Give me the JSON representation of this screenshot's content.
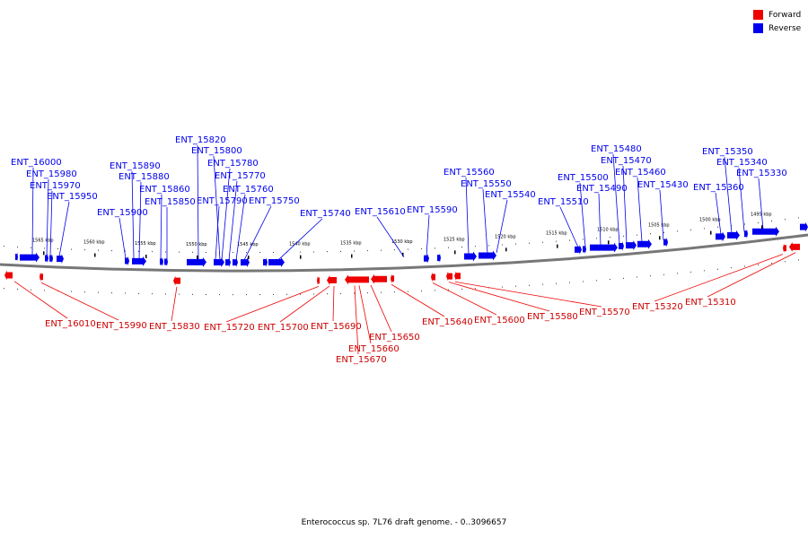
{
  "legend": {
    "forward_label": "Forward",
    "reverse_label": "Reverse",
    "forward_color": "#ee0000",
    "reverse_color": "#0000ee"
  },
  "caption": "Enterococcus sp. 7L76 draft genome. - 0..3096657",
  "scale_ticks": [
    "1565 kbp",
    "1560 kbp",
    "1555 kbp",
    "1550 kbp",
    "1545 kbp",
    "1540 kbp",
    "1535 kbp",
    "1530 kbp",
    "1525 kbp",
    "1520 kbp",
    "1515 kbp",
    "1510 kbp",
    "1505 kbp",
    "1500 kbp",
    "1495 kbp"
  ],
  "reverse_genes": [
    "ENT_16000",
    "ENT_15980",
    "ENT_15970",
    "ENT_15950",
    "ENT_15900",
    "ENT_15890",
    "ENT_15880",
    "ENT_15860",
    "ENT_15850",
    "ENT_15820",
    "ENT_15800",
    "ENT_15780",
    "ENT_15770",
    "ENT_15790",
    "ENT_15760",
    "ENT_15750",
    "ENT_15740",
    "ENT_15610",
    "ENT_15590",
    "ENT_15560",
    "ENT_15550",
    "ENT_15540",
    "ENT_15510",
    "ENT_15500",
    "ENT_15490",
    "ENT_15480",
    "ENT_15470",
    "ENT_15460",
    "ENT_15430",
    "ENT_15360",
    "ENT_15350",
    "ENT_15340",
    "ENT_15330"
  ],
  "forward_genes": [
    "ENT_16010",
    "ENT_15990",
    "ENT_15830",
    "ENT_15720",
    "ENT_15700",
    "ENT_15690",
    "ENT_15650",
    "ENT_15660",
    "ENT_15670",
    "ENT_15640",
    "ENT_15600",
    "ENT_15580",
    "ENT_15570",
    "ENT_15320",
    "ENT_15310"
  ]
}
